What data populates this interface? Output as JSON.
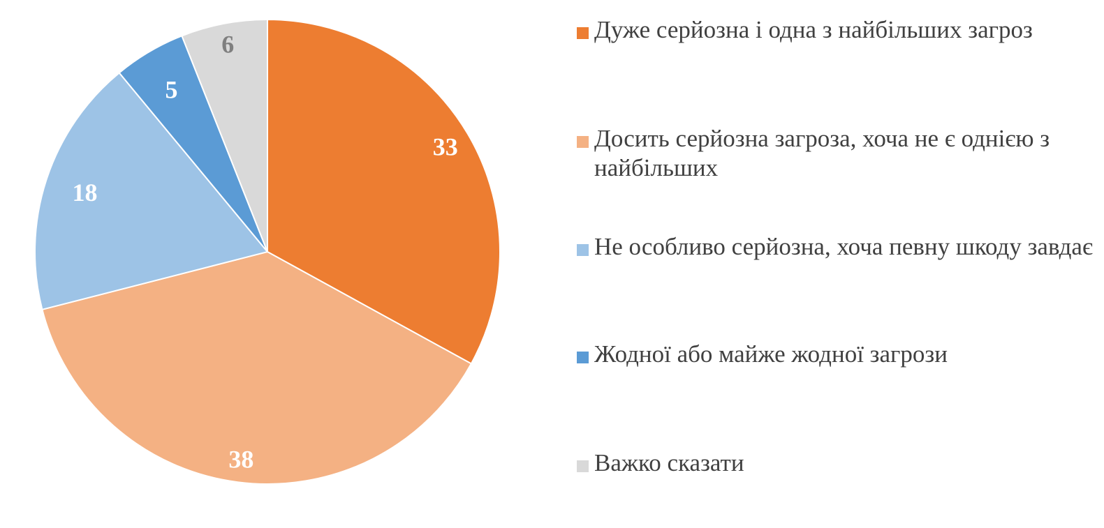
{
  "chart_data": {
    "type": "pie",
    "title": "",
    "start_angle_deg": 0,
    "direction": "clockwise",
    "legend_position": "right",
    "slices": [
      {
        "label": "Дуже серйозна і одна з найбільших загроз",
        "value": 33,
        "color": "#ED7D31",
        "label_color": "#FFFFFF"
      },
      {
        "label": "Досить серйозна загроза, хоча не є однією з найбільших",
        "value": 38,
        "color": "#F4B183",
        "label_color": "#FFFFFF"
      },
      {
        "label": "Не особливо серйозна, хоча певну шкоду завдає",
        "value": 18,
        "color": "#9DC3E6",
        "label_color": "#FFFFFF"
      },
      {
        "label": "Жодної або майже жодної загрози",
        "value": 5,
        "color": "#5B9BD5",
        "label_color": "#FFFFFF"
      },
      {
        "label": "Важко сказати",
        "value": 6,
        "color": "#D9D9D9",
        "label_color": "#7F7F7F"
      }
    ]
  },
  "legend": {
    "items": [
      {
        "label": "Дуже серйозна і одна з найбільших загроз",
        "color": "#ED7D31"
      },
      {
        "label": "Досить серйозна загроза, хоча не є однією з найбільших",
        "color": "#F4B183"
      },
      {
        "label": "Не особливо серйозна, хоча певну шкоду завдає",
        "color": "#9DC3E6"
      },
      {
        "label": "Жодної або майже жодної загрози",
        "color": "#5B9BD5"
      },
      {
        "label": "Важко сказати",
        "color": "#D9D9D9"
      }
    ]
  }
}
